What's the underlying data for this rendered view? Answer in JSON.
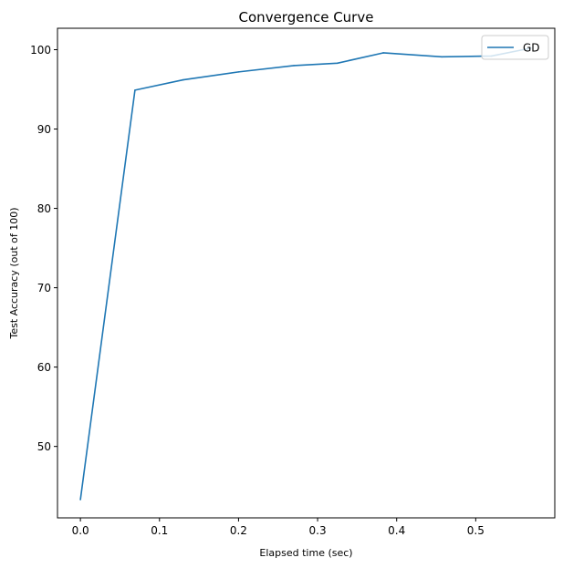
{
  "chart_data": {
    "type": "line",
    "title": "Convergence Curve",
    "xlabel": "Elapsed time (sec)",
    "ylabel": "Test Accuracy (out of 100)",
    "xlim": [
      -0.029,
      0.6
    ],
    "ylim": [
      41.0,
      102.7
    ],
    "xticks": [
      0.0,
      0.1,
      0.2,
      0.3,
      0.4,
      0.5
    ],
    "xtick_labels": [
      "0.0",
      "0.1",
      "0.2",
      "0.3",
      "0.4",
      "0.5"
    ],
    "yticks": [
      50,
      60,
      70,
      80,
      90,
      100
    ],
    "ytick_labels": [
      "50",
      "60",
      "70",
      "80",
      "90",
      "100"
    ],
    "grid": false,
    "legend_position": "top-right",
    "colors": {
      "line": "#1f77b4",
      "axes": "#000000",
      "background": "#ffffff"
    },
    "series": [
      {
        "name": "GD",
        "x": [
          0.0,
          0.069,
          0.13,
          0.2,
          0.27,
          0.325,
          0.383,
          0.457,
          0.52,
          0.57
        ],
        "y": [
          43.3,
          94.9,
          96.2,
          97.2,
          98.0,
          98.3,
          99.6,
          99.1,
          99.2,
          100.2
        ]
      }
    ]
  }
}
